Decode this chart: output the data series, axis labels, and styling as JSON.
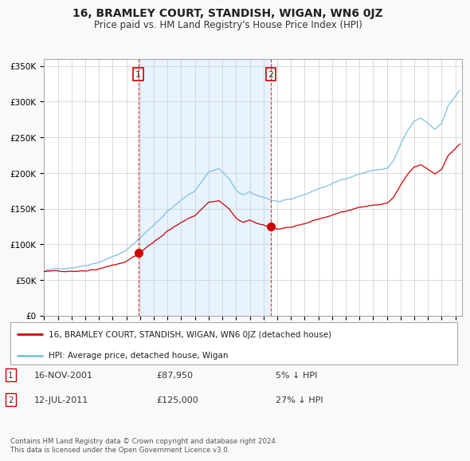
{
  "title": "16, BRAMLEY COURT, STANDISH, WIGAN, WN6 0JZ",
  "subtitle": "Price paid vs. HM Land Registry's House Price Index (HPI)",
  "title_fontsize": 10,
  "subtitle_fontsize": 8.5,
  "ylabel_ticks": [
    "£0",
    "£50K",
    "£100K",
    "£150K",
    "£200K",
    "£250K",
    "£300K",
    "£350K"
  ],
  "ytick_vals": [
    0,
    50000,
    100000,
    150000,
    200000,
    250000,
    300000,
    350000
  ],
  "ylim": [
    0,
    360000
  ],
  "xlim_start": 1995.0,
  "xlim_end": 2025.5,
  "hpi_color": "#7fbfdf",
  "property_color": "#cc0000",
  "shade_color": "#ddeeff",
  "sale1_date": "16-NOV-2001",
  "sale1_price": 87950,
  "sale1_pct": "5% ↓ HPI",
  "sale1_x": 2001.88,
  "sale2_date": "12-JUL-2011",
  "sale2_price": 125000,
  "sale2_pct": "27% ↓ HPI",
  "sale2_x": 2011.53,
  "legend_line1": "16, BRAMLEY COURT, STANDISH, WIGAN, WN6 0JZ (detached house)",
  "legend_line2": "HPI: Average price, detached house, Wigan",
  "footer": "Contains HM Land Registry data © Crown copyright and database right 2024.\nThis data is licensed under the Open Government Licence v3.0.",
  "background_color": "#f9f9f9",
  "plot_bg": "#ffffff",
  "grid_color": "#cccccc"
}
